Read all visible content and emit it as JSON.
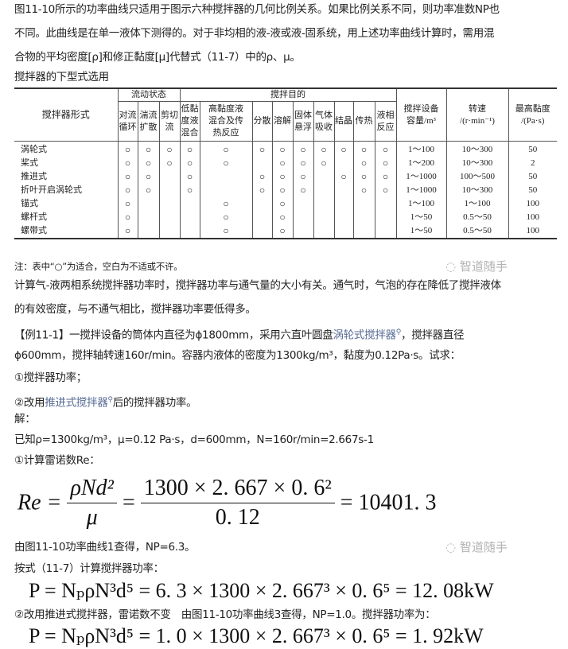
{
  "intro": {
    "line1": "图11-10所示的功率曲线只适用于图示六种搅拌器的几何比例关系。如果比例关系不同，则功率准数NP也",
    "line2": "不同。此曲线是在单一液体下测得的。对于非均相的液-液或液-固系统，用上述功率曲线计算时，需用混",
    "line3": "合物的平均密度[ρ]和修正黏度[μ]代替式（11-7）中的ρ、μ。"
  },
  "table_caption": "搅拌器的下型式选用",
  "table": {
    "header_name": "搅拌器形式",
    "group_flow": "流动状态",
    "group_purpose": "搅拌目的",
    "flow_cols": [
      [
        "对流",
        "循环"
      ],
      [
        "湍流",
        "扩散"
      ],
      [
        "剪切",
        "流"
      ]
    ],
    "purpose_cols": [
      [
        "低黏",
        "度液",
        "混合"
      ],
      [
        "高黏度液",
        "混合及传",
        "热反应"
      ],
      [
        "分散"
      ],
      [
        "溶解"
      ],
      [
        "固体",
        "悬浮"
      ],
      [
        "气体",
        "吸收"
      ],
      [
        "结晶"
      ],
      [
        "传热"
      ],
      [
        "液相",
        "反应"
      ]
    ],
    "capacity": [
      "搅拌设备",
      "容量/m³"
    ],
    "speed": [
      "转速",
      "/(r·min⁻¹)"
    ],
    "viscosity": [
      "最高黏度",
      "/(Pa·s)"
    ],
    "mark": "○",
    "rows": [
      {
        "name": "涡轮式",
        "marks": [
          1,
          1,
          1,
          1,
          1,
          1,
          1,
          1,
          1,
          1,
          1,
          1
        ],
        "capacity": "1～100",
        "speed": "10～300",
        "viscosity": "50"
      },
      {
        "name": "桨式",
        "marks": [
          1,
          1,
          1,
          1,
          1,
          0,
          1,
          1,
          1,
          0,
          1,
          1
        ],
        "capacity": "1～200",
        "speed": "10～300",
        "viscosity": "2"
      },
      {
        "name": "推进式",
        "marks": [
          1,
          1,
          0,
          1,
          0,
          1,
          1,
          1,
          0,
          1,
          1,
          1
        ],
        "capacity": "1～1000",
        "speed": "100～500",
        "viscosity": "50"
      },
      {
        "name": "折叶开启涡轮式",
        "marks": [
          1,
          1,
          0,
          1,
          0,
          1,
          1,
          1,
          0,
          0,
          1,
          1
        ],
        "capacity": "1～1000",
        "speed": "10～300",
        "viscosity": "50"
      },
      {
        "name": "锚式",
        "marks": [
          1,
          0,
          0,
          0,
          1,
          0,
          1,
          0,
          0,
          0,
          0,
          0
        ],
        "capacity": "1～100",
        "speed": "1～100",
        "viscosity": "100"
      },
      {
        "name": "螺杆式",
        "marks": [
          1,
          0,
          0,
          0,
          1,
          0,
          1,
          0,
          0,
          0,
          0,
          0
        ],
        "capacity": "1～50",
        "speed": "0.5～50",
        "viscosity": "100"
      },
      {
        "name": "螺带式",
        "marks": [
          1,
          0,
          0,
          0,
          1,
          0,
          1,
          0,
          0,
          0,
          0,
          0
        ],
        "capacity": "1～50",
        "speed": "0.5～50",
        "viscosity": "100"
      }
    ]
  },
  "note": "注：表中“○”为适合，空白为不适或不许。",
  "para2": {
    "line1": "计算气-液两相系统搅拌器功率时，搅拌器功率与通气量的大小有关。通气时，气泡的存在降低了搅拌液体",
    "line2": "的有效密度，与不通气相比，搅拌器功率要低得多。"
  },
  "example": {
    "line1_a": "【例11-1】一搅拌设备的筒体内直径为ϕ1800mm，采用六直叶圆盘",
    "line1_link": "涡轮式搅拌器",
    "line1_b": "，搅拌器直径",
    "line2": "ϕ600mm，搅拌轴转速160r/min。容器内液体的密度为1300kg/m³，黏度为0.12Pa·s。试求：",
    "q1": "①搅拌器功率；",
    "q2_a": "②改用",
    "q2_link": "推进式搅拌器",
    "q2_b": "后的搅拌器功率。",
    "solution": "解：",
    "given": "已知ρ=1300kg/m³，μ=0.12 Pa·s，d=600mm，N=160r/min=2.667s-1",
    "step1": "①计算雷诺数Re：",
    "eq_re": {
      "lhs": "Re =",
      "num1": "ρNd²",
      "den1": "μ",
      "eq": "=",
      "num2": "1300 × 2. 667 × 0. 6²",
      "den2": "0. 12",
      "result": "= 10401. 3"
    },
    "np1": "由图11-10功率曲线1查得，NP=6.3。",
    "calc": "按式（11-7）计算搅拌器功率：",
    "eq_p1": "P = NₚρN³d⁵ = 6. 3 × 1300 × 2. 667³ × 0. 6⁵ = 12. 08kW",
    "step2": "②改用推进式搅拌器，雷诺数不变　由图11-10功率曲线3查得，NP=1.0。搅拌器功率为：",
    "eq_p2": "P = NₚρN³d⁵ = 1. 0 × 1300 × 2. 667³ × 0. 6⁵ = 1. 92kW"
  },
  "search_icon": "magnifier-icon",
  "watermark": "智道随手",
  "colors": {
    "link": "#576b95",
    "text": "#222222"
  }
}
